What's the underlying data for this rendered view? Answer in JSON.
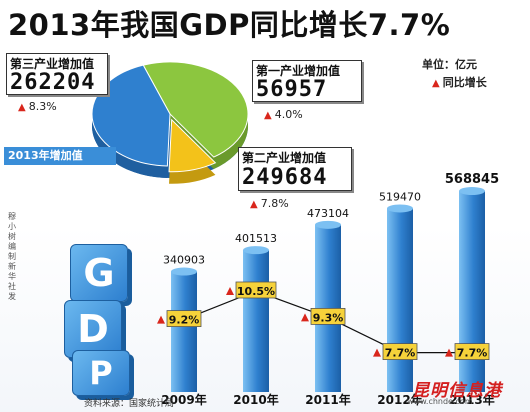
{
  "title": "2013年我国GDP同比增长7.7%",
  "unit": "单位：亿元",
  "legend_growth": "同比增长",
  "band_label": "2013年增加值",
  "side_credit": "穆小树编制 新华社发",
  "source": "资料来源：国家统计局",
  "watermark": "昆明信息港",
  "watermark_url": "www.chnde.com",
  "gdp_letters": [
    "G",
    "D",
    "P"
  ],
  "colors": {
    "bar": "#2f80cf",
    "bar_light": "#7cc0f2",
    "triangle": "#d9261c",
    "label_bg": "#f6d23a",
    "pie_green": "#8cc63f",
    "pie_blue": "#2f80cf",
    "pie_yellow": "#f3c21a"
  },
  "chart_data": [
    {
      "type": "pie",
      "title": "2013年增加值",
      "slices": [
        {
          "name": "第三产业增加值",
          "value": 262204,
          "growth": "8.3%"
        },
        {
          "name": "第一产业增加值",
          "value": 56957,
          "growth": "4.0%"
        },
        {
          "name": "第二产业增加值",
          "value": 249684,
          "growth": "7.8%"
        }
      ]
    },
    {
      "type": "bar",
      "categories": [
        "2009年",
        "2010年",
        "2011年",
        "2012年",
        "2013年"
      ],
      "values": [
        340903,
        401513,
        473104,
        519470,
        568845
      ],
      "value_labels": [
        "340903",
        "401513",
        "473104",
        "519470",
        "568845"
      ],
      "growth": [
        9.2,
        10.5,
        9.3,
        7.7,
        7.7
      ],
      "growth_labels": [
        "9.2%",
        "10.5%",
        "9.3%",
        "7.7%",
        "7.7%"
      ],
      "ylim": [
        0,
        600000
      ],
      "growth_range": [
        7.0,
        11.0
      ]
    }
  ]
}
